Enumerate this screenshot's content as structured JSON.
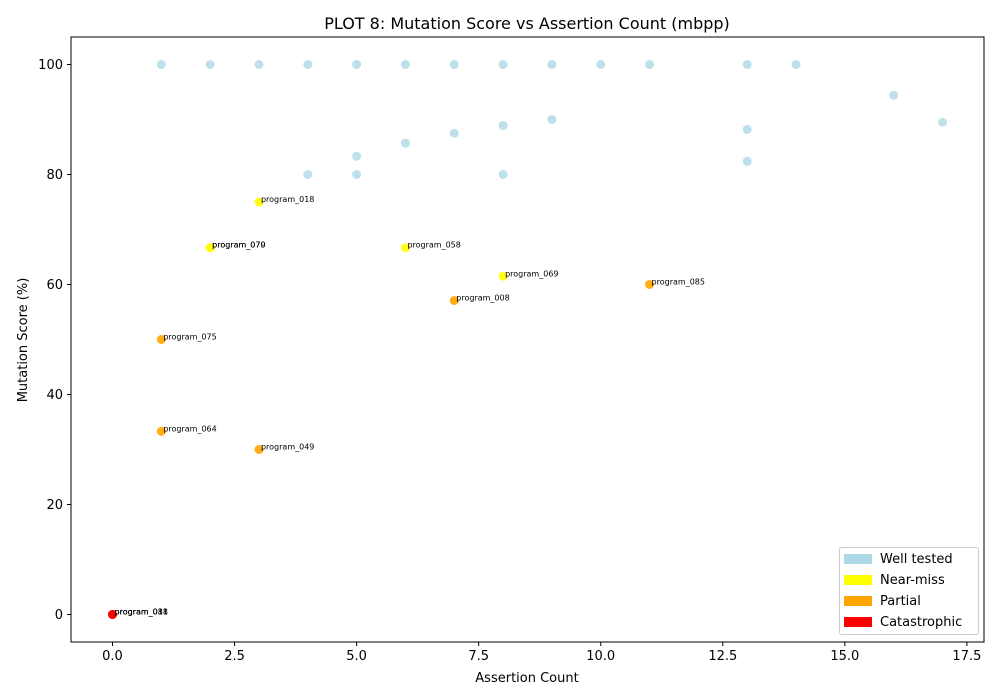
{
  "chart_data": {
    "type": "scatter",
    "title": "PLOT 8: Mutation Score vs Assertion Count (mbpp)",
    "xlabel": "Assertion Count",
    "ylabel": "Mutation Score (%)",
    "xlim": [
      -0.85,
      17.85
    ],
    "ylim": [
      -5,
      105
    ],
    "xticks": [
      "0.0",
      "2.5",
      "5.0",
      "7.5",
      "10.0",
      "12.5",
      "15.0",
      "17.5"
    ],
    "xtick_values": [
      0,
      2.5,
      5,
      7.5,
      10,
      12.5,
      15,
      17.5
    ],
    "yticks": [
      "0",
      "20",
      "40",
      "60",
      "80",
      "100"
    ],
    "ytick_values": [
      0,
      20,
      40,
      60,
      80,
      100
    ],
    "grid": false,
    "legend_position": "lower-right",
    "categories": [
      {
        "name": "Well tested",
        "color": "#add8e6"
      },
      {
        "name": "Near-miss",
        "color": "#ffff00"
      },
      {
        "name": "Partial",
        "color": "#ffa500"
      },
      {
        "name": "Catastrophic",
        "color": "#ff0000"
      }
    ],
    "points": [
      {
        "x": 1,
        "y": 100,
        "category": 0
      },
      {
        "x": 2,
        "y": 100,
        "category": 0
      },
      {
        "x": 3,
        "y": 100,
        "category": 0
      },
      {
        "x": 4,
        "y": 100,
        "category": 0
      },
      {
        "x": 5,
        "y": 100,
        "category": 0
      },
      {
        "x": 6,
        "y": 100,
        "category": 0
      },
      {
        "x": 7,
        "y": 100,
        "category": 0
      },
      {
        "x": 8,
        "y": 100,
        "category": 0
      },
      {
        "x": 9,
        "y": 100,
        "category": 0
      },
      {
        "x": 10,
        "y": 100,
        "category": 0
      },
      {
        "x": 11,
        "y": 100,
        "category": 0
      },
      {
        "x": 13,
        "y": 100,
        "category": 0
      },
      {
        "x": 14,
        "y": 100,
        "category": 0
      },
      {
        "x": 16,
        "y": 94.4,
        "category": 0
      },
      {
        "x": 17,
        "y": 89.5,
        "category": 0
      },
      {
        "x": 9,
        "y": 90,
        "category": 0
      },
      {
        "x": 8,
        "y": 88.9,
        "category": 0
      },
      {
        "x": 13,
        "y": 88.2,
        "category": 0
      },
      {
        "x": 7,
        "y": 87.5,
        "category": 0
      },
      {
        "x": 6,
        "y": 85.7,
        "category": 0
      },
      {
        "x": 5,
        "y": 83.3,
        "category": 0
      },
      {
        "x": 13,
        "y": 82.4,
        "category": 0
      },
      {
        "x": 4,
        "y": 80,
        "category": 0
      },
      {
        "x": 5,
        "y": 80,
        "category": 0
      },
      {
        "x": 8,
        "y": 80,
        "category": 0
      },
      {
        "x": 3,
        "y": 75,
        "category": 1,
        "label": "program_018"
      },
      {
        "x": 2,
        "y": 66.7,
        "category": 1,
        "label": "program_070"
      },
      {
        "x": 2,
        "y": 66.7,
        "category": 1,
        "label": "program_079"
      },
      {
        "x": 6,
        "y": 66.7,
        "category": 1,
        "label": "program_058"
      },
      {
        "x": 8,
        "y": 61.5,
        "category": 1,
        "label": "program_069"
      },
      {
        "x": 11,
        "y": 60,
        "category": 2,
        "label": "program_085"
      },
      {
        "x": 7,
        "y": 57.1,
        "category": 2,
        "label": "program_008"
      },
      {
        "x": 1,
        "y": 50,
        "category": 2,
        "label": "program_075"
      },
      {
        "x": 1,
        "y": 33.3,
        "category": 2,
        "label": "program_064"
      },
      {
        "x": 3,
        "y": 30,
        "category": 2,
        "label": "program_049"
      },
      {
        "x": 0,
        "y": 0,
        "category": 3,
        "label": "program_011"
      },
      {
        "x": 0,
        "y": 0,
        "category": 3,
        "label": "program_031"
      },
      {
        "x": 0,
        "y": 0,
        "category": 3,
        "label": "program_088"
      }
    ]
  }
}
